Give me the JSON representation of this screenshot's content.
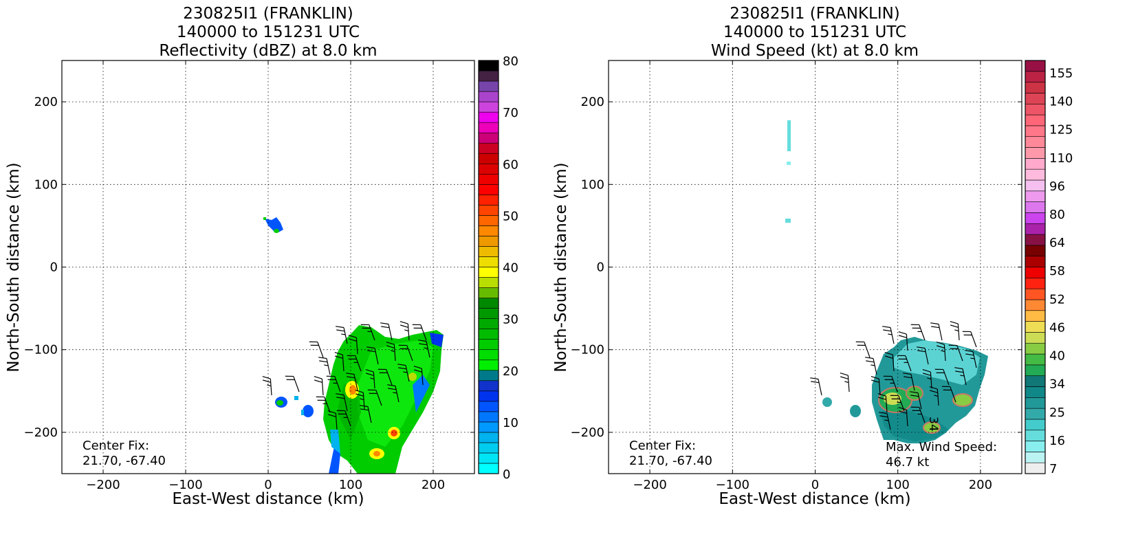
{
  "panels": [
    {
      "title_lines": [
        "230825I1 (FRANKLIN)",
        "140000 to 151231 UTC",
        "Reflectivity (dBZ) at 8.0 km"
      ],
      "xlabel": "East-West distance (km)",
      "ylabel": "North-South distance (km)",
      "center_fix_label": "Center Fix:",
      "center_fix_value": "21.70, -67.40",
      "max_label": "",
      "max_value": ""
    },
    {
      "title_lines": [
        "230825I1 (FRANKLIN)",
        "140000 to 151231 UTC",
        "Wind Speed (kt) at 8.0 km"
      ],
      "xlabel": "East-West distance (km)",
      "ylabel": "North-South distance (km)",
      "center_fix_label": "Center Fix:",
      "center_fix_value": "21.70, -67.40",
      "max_label": "Max. Wind Speed:",
      "max_value": "46.7 kt"
    }
  ],
  "chart_data": [
    {
      "type": "heatmap",
      "title": "230825I1 (FRANKLIN) 140000 to 151231 UTC Reflectivity (dBZ) at 8.0 km",
      "xlabel": "East-West distance (km)",
      "ylabel": "North-South distance (km)",
      "xlim": [
        -250,
        250
      ],
      "ylim": [
        -250,
        250
      ],
      "xticks": [
        -200,
        -100,
        0,
        100,
        200
      ],
      "yticks": [
        -200,
        -100,
        0,
        100,
        200
      ],
      "grid": true,
      "colorbar": {
        "range": [
          0,
          80
        ],
        "ticks": [
          0,
          10,
          20,
          30,
          40,
          50,
          60,
          70,
          80
        ],
        "colors": [
          "#00ffff",
          "#00e5f5",
          "#00ccf0",
          "#00b2ee",
          "#0099ff",
          "#0077ff",
          "#0055ff",
          "#0033ee",
          "#1133cc",
          "#007a8a",
          "#00ee00",
          "#00dd00",
          "#00cc00",
          "#00bb00",
          "#00aa00",
          "#009900",
          "#008800",
          "#66bb00",
          "#b8dd00",
          "#ffff00",
          "#eedd00",
          "#eebb00",
          "#ee9900",
          "#ff8800",
          "#ff6600",
          "#ff4400",
          "#ff2200",
          "#ff0000",
          "#ee0000",
          "#dd0000",
          "#cc0000",
          "#cc0022",
          "#cc0077",
          "#ee00bb",
          "#ee00ee",
          "#cc44dd",
          "#aa44cc",
          "#7744aa",
          "#442244",
          "#000000"
        ]
      },
      "echo_regions": [
        {
          "shape": "main-echo",
          "x_range": [
            75,
            215
          ],
          "y_range": [
            -250,
            -70
          ],
          "dominant_dbz": "20-25"
        },
        {
          "shape": "small-echo",
          "center": [
            10,
            52
          ],
          "dominant_dbz": "10-20"
        },
        {
          "shape": "small-echo",
          "center": [
            15,
            -162
          ],
          "dominant_dbz": "10-20"
        },
        {
          "shape": "small-echo",
          "center": [
            48,
            -172
          ],
          "dominant_dbz": "10"
        }
      ],
      "wind_barbs": "present over main echo, westerly to northwesterly ~25-35 kt"
    },
    {
      "type": "heatmap",
      "title": "230825I1 (FRANKLIN) 140000 to 151231 UTC Wind Speed (kt) at 8.0 km",
      "xlabel": "East-West distance (km)",
      "ylabel": "North-South distance (km)",
      "xlim": [
        -250,
        250
      ],
      "ylim": [
        -250,
        250
      ],
      "xticks": [
        -200,
        -100,
        0,
        100,
        200
      ],
      "yticks": [
        -200,
        -100,
        0,
        100,
        200
      ],
      "grid": true,
      "colorbar": {
        "ticks": [
          7,
          16,
          25,
          34,
          40,
          46,
          52,
          58,
          64,
          80,
          96,
          110,
          125,
          140,
          155
        ],
        "colors": [
          "#eeeeee",
          "#bbf3f3",
          "#88eeee",
          "#66dddd",
          "#44cccc",
          "#33aaaa",
          "#229999",
          "#118888",
          "#117777",
          "#22aa55",
          "#44bb44",
          "#88cc44",
          "#ccdd55",
          "#eedd55",
          "#ffbb44",
          "#ff8833",
          "#ff5522",
          "#ff2211",
          "#ee0000",
          "#aa0000",
          "#770000",
          "#881144",
          "#aa22aa",
          "#cc44ee",
          "#dd77ee",
          "#ee99ee",
          "#f5c0f0",
          "#ffbbdd",
          "#ffaacc",
          "#ff99aa",
          "#ff8899",
          "#ff7788",
          "#ff6677",
          "#ee5566",
          "#dd4455",
          "#cc3344",
          "#bb2244",
          "#991144"
        ]
      },
      "contour_label": "34",
      "max_wind_kt": 46.7,
      "wind_barbs": "present over main echo"
    }
  ]
}
